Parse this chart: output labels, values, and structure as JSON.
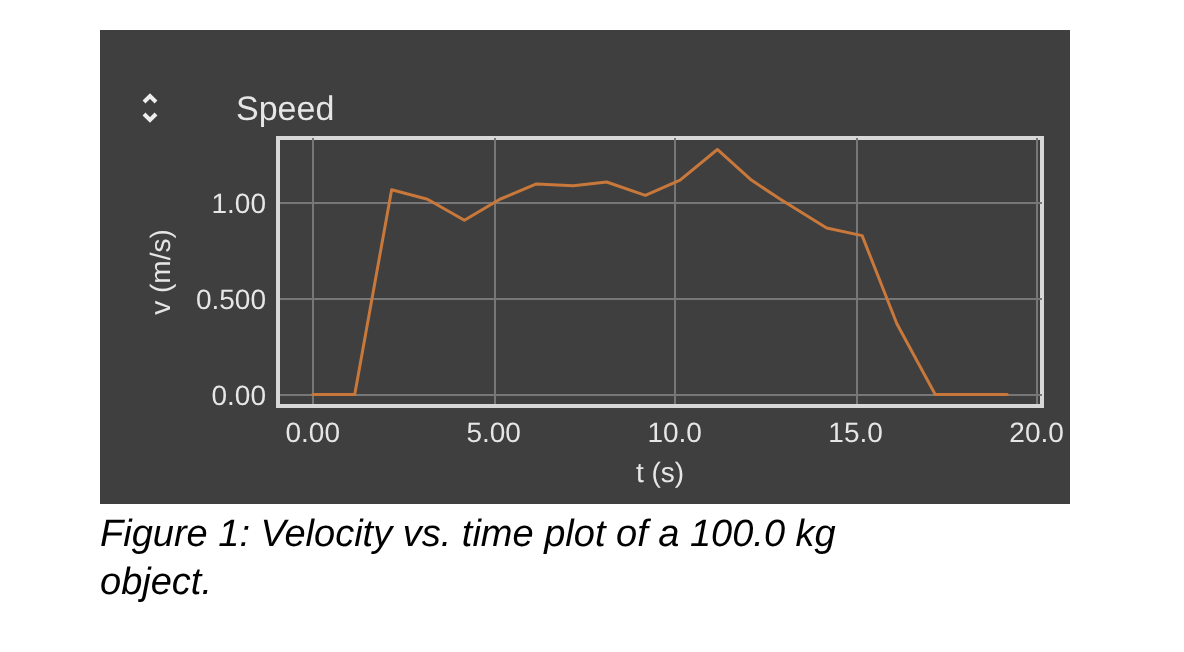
{
  "chart_data": {
    "type": "line",
    "title": "Speed",
    "xlabel": "t (s)",
    "ylabel": "v (m/s)",
    "annotations": [
      "Figure 1: Velocity vs. time plot of a 100.0 kg object."
    ],
    "series": [
      {
        "color": "#c8783a",
        "x": [
          0,
          1.16,
          2.18,
          3.17,
          4.19,
          5.17,
          6.18,
          7.2,
          8.12,
          9.19,
          10.15,
          11.18,
          12.12,
          12.92,
          14.2,
          15.18,
          16.14,
          17.2,
          18.2,
          19.19
        ],
        "values": [
          0,
          0,
          1.07,
          1.02,
          0.91,
          1.02,
          1.1,
          1.09,
          1.11,
          1.04,
          1.12,
          1.28,
          1.12,
          1.02,
          0.87,
          0.83,
          0.37,
          0,
          0,
          0
        ]
      }
    ],
    "xlim": [
      -0.96,
      20.15
    ],
    "ylim": [
      -0.06,
      1.34
    ],
    "xticks": [
      {
        "value": 0,
        "label": "0.00"
      },
      {
        "value": 5,
        "label": "5.00"
      },
      {
        "value": 10,
        "label": "10.0"
      },
      {
        "value": 15,
        "label": "15.0"
      },
      {
        "value": 20,
        "label": "20.0"
      }
    ],
    "yticks": [
      {
        "value": 0,
        "label": "0.00"
      },
      {
        "value": 0.5,
        "label": "0.500"
      },
      {
        "value": 1,
        "label": "1.00"
      }
    ],
    "grid": true,
    "marker": "none",
    "line_style": "solid"
  }
}
